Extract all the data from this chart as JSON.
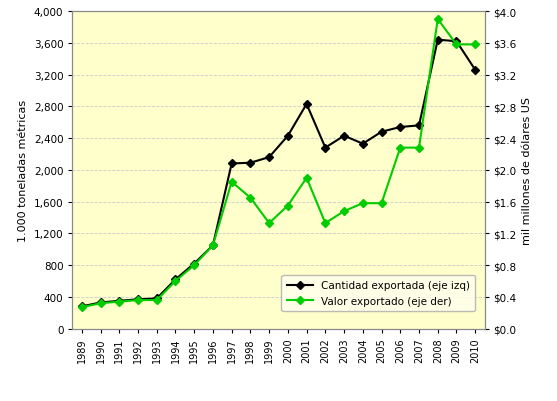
{
  "years": [
    1989,
    1990,
    1991,
    1992,
    1993,
    1994,
    1995,
    1996,
    1997,
    1998,
    1999,
    2000,
    2001,
    2002,
    2003,
    2004,
    2005,
    2006,
    2007,
    2008,
    2009,
    2010
  ],
  "quantity": [
    280,
    330,
    350,
    370,
    380,
    620,
    820,
    1050,
    2080,
    2090,
    2160,
    2430,
    2830,
    2280,
    2430,
    2330,
    2480,
    2540,
    2560,
    3640,
    3620,
    3260
  ],
  "value": [
    0.27,
    0.32,
    0.34,
    0.36,
    0.36,
    0.6,
    0.8,
    1.05,
    1.85,
    1.65,
    1.33,
    1.55,
    1.9,
    1.33,
    1.48,
    1.58,
    1.58,
    2.28,
    2.28,
    3.9,
    3.58,
    3.58
  ],
  "qty_color": "#000000",
  "val_color": "#00cc00",
  "bg_color": "#ffffcc",
  "outer_bg": "#ffffff",
  "ylabel_left": "1.000 toneladas métricas",
  "ylabel_right": "mil millones de dólares US",
  "ylim_left": [
    0,
    4000
  ],
  "ylim_right": [
    0.0,
    4.0
  ],
  "yticks_left": [
    0,
    400,
    800,
    1200,
    1600,
    2000,
    2400,
    2800,
    3200,
    3600,
    4000
  ],
  "yticks_right": [
    0.0,
    0.4,
    0.8,
    1.2,
    1.6,
    2.0,
    2.4,
    2.8,
    3.2,
    3.6,
    4.0
  ],
  "ytick_labels_left": [
    "0",
    "400",
    "800",
    "1,200",
    "1,600",
    "2,000",
    "2,400",
    "2,800",
    "3,200",
    "3,600",
    "4,000"
  ],
  "ytick_labels_right": [
    "$0.0",
    "$0.4",
    "$0.8",
    "$1.2",
    "$1.6",
    "$2.0",
    "$2.4",
    "$2.8",
    "$3.2",
    "$3.6",
    "$4.0"
  ],
  "legend_qty": "Cantidad exportada (eje izq)",
  "legend_val": "Valor exportado (eje der)",
  "marker_qty": "D",
  "marker_val": "D",
  "grid_color": "#cccccc",
  "markersize": 4,
  "linewidth": 1.5
}
